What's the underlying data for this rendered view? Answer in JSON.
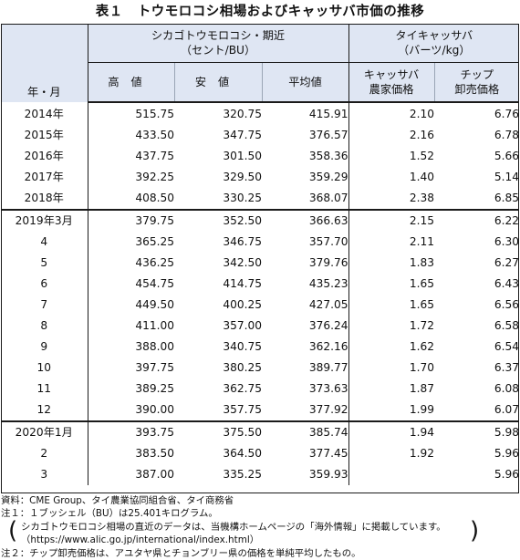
{
  "title": {
    "number": "表１",
    "text": "トウモロコシ相場およびキャッサバ市価の推移"
  },
  "header": {
    "year_month": "年・月",
    "group1_line1": "シカゴトウモロコシ・期近",
    "group1_line2": "（セント/BU）",
    "group2_line1": "タイキャッサバ",
    "group2_line2": "（バーツ/kg）",
    "col_high": "高値",
    "col_low": "安値",
    "col_avg": "平均値",
    "col_farm_line1": "キャッサバ",
    "col_farm_line2": "農家価格",
    "col_chip_line1": "チップ",
    "col_chip_line2": "卸売価格"
  },
  "rows": [
    {
      "label": "2014年",
      "high": "515.75",
      "low": "320.75",
      "avg": "415.91",
      "farm": "2.10",
      "chip": "6.76"
    },
    {
      "label": "2015年",
      "high": "433.50",
      "low": "347.75",
      "avg": "376.57",
      "farm": "2.16",
      "chip": "6.78"
    },
    {
      "label": "2016年",
      "high": "437.75",
      "low": "301.50",
      "avg": "358.36",
      "farm": "1.52",
      "chip": "5.66"
    },
    {
      "label": "2017年",
      "high": "392.25",
      "low": "329.50",
      "avg": "359.29",
      "farm": "1.40",
      "chip": "5.14"
    },
    {
      "label": "2018年",
      "high": "408.50",
      "low": "330.25",
      "avg": "368.07",
      "farm": "2.38",
      "chip": "6.85"
    },
    {
      "label": "2019年3月",
      "high": "379.75",
      "low": "352.50",
      "avg": "366.63",
      "farm": "2.15",
      "chip": "6.22"
    },
    {
      "label": "4",
      "high": "365.25",
      "low": "346.75",
      "avg": "357.70",
      "farm": "2.11",
      "chip": "6.30"
    },
    {
      "label": "5",
      "high": "436.25",
      "low": "342.50",
      "avg": "379.76",
      "farm": "1.83",
      "chip": "6.27"
    },
    {
      "label": "6",
      "high": "454.75",
      "low": "414.75",
      "avg": "435.23",
      "farm": "1.65",
      "chip": "6.43"
    },
    {
      "label": "7",
      "high": "449.50",
      "low": "400.25",
      "avg": "427.05",
      "farm": "1.65",
      "chip": "6.56"
    },
    {
      "label": "8",
      "high": "411.00",
      "low": "357.00",
      "avg": "376.24",
      "farm": "1.72",
      "chip": "6.58"
    },
    {
      "label": "9",
      "high": "388.00",
      "low": "340.75",
      "avg": "362.16",
      "farm": "1.62",
      "chip": "6.54"
    },
    {
      "label": "10",
      "high": "397.75",
      "low": "380.25",
      "avg": "389.77",
      "farm": "1.70",
      "chip": "6.37"
    },
    {
      "label": "11",
      "high": "389.25",
      "low": "362.75",
      "avg": "373.63",
      "farm": "1.87",
      "chip": "6.08"
    },
    {
      "label": "12",
      "high": "390.00",
      "low": "357.75",
      "avg": "377.92",
      "farm": "1.99",
      "chip": "6.07"
    },
    {
      "label": "2020年1月",
      "high": "393.75",
      "low": "375.50",
      "avg": "385.74",
      "farm": "1.94",
      "chip": "5.98"
    },
    {
      "label": "2",
      "high": "383.50",
      "low": "364.50",
      "avg": "377.45",
      "farm": "1.92",
      "chip": "5.96"
    },
    {
      "label": "3",
      "high": "387.00",
      "low": "335.25",
      "avg": "359.93",
      "farm": "",
      "chip": "5.96"
    }
  ],
  "notes": {
    "source": "資料：CME Group、タイ農業協同組合省、タイ商務省",
    "note1": "注１：１ブッシェル（BU）は25.401キログラム。",
    "note1_sub1": "シカゴトウモロコシ相場の直近のデータは、当機構ホームページの「海外情報」に掲載しています。",
    "note1_sub2": "（https://www.alic.go.jp/international/index.html）",
    "note2": "注２：チップ卸売価格は、アユタヤ県とチョンブリー県の価格を単純平均したもの。"
  }
}
